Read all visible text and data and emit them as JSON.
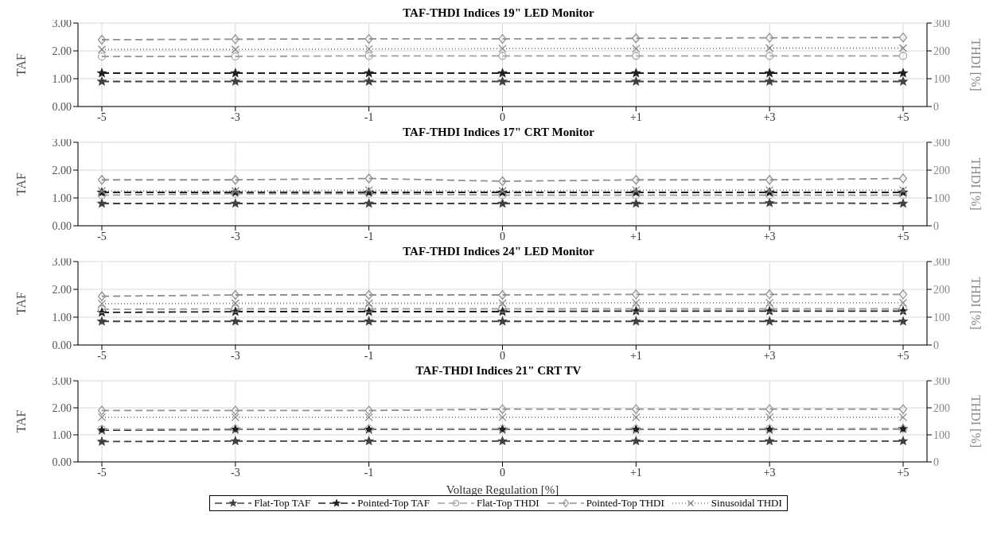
{
  "chart_data": [
    {
      "type": "line",
      "title": "TAF-THDI Indices 19\" LED Monitor",
      "ylabel": "TAF",
      "y2label": "THDI [%]",
      "categories": [
        "-5",
        "-3",
        "-1",
        "0",
        "+1",
        "+3",
        "+5"
      ],
      "ylim": [
        0,
        3
      ],
      "yticks": [
        {
          "value": 0,
          "label": "0.00"
        },
        {
          "value": 1,
          "label": "1.00"
        },
        {
          "value": 2,
          "label": "2.00"
        },
        {
          "value": 3,
          "label": "3.00"
        }
      ],
      "y2lim": [
        0,
        300
      ],
      "y2ticks": [
        0,
        100,
        200,
        300
      ],
      "grid": true,
      "legend": false,
      "series": [
        {
          "color": "#404040",
          "marker": "star",
          "line_style": "dashed",
          "values": [
            0.9,
            0.9,
            0.9,
            0.9,
            0.9,
            0.9,
            0.9
          ]
        },
        {
          "color": "#202020",
          "marker": "star",
          "line_style": "dashed",
          "values": [
            1.2,
            1.2,
            1.2,
            1.2,
            1.2,
            1.2,
            1.2
          ]
        },
        {
          "color": "#a0a0a0",
          "marker": "circle",
          "line_style": "dashed",
          "axis": "y2",
          "values": [
            180,
            180,
            182,
            182,
            182,
            182,
            182
          ]
        },
        {
          "color": "#909090",
          "marker": "diamond",
          "line_style": "dashed",
          "axis": "y2",
          "values": [
            240,
            242,
            243,
            243,
            245,
            247,
            248
          ]
        },
        {
          "color": "#808080",
          "marker": "cross",
          "line_style": "dotted",
          "axis": "y2",
          "values": [
            205,
            205,
            207,
            208,
            208,
            210,
            210
          ]
        }
      ]
    },
    {
      "type": "line",
      "title": "TAF-THDI Indices 17\" CRT Monitor",
      "ylabel": "TAF",
      "y2label": "THDI [%]",
      "categories": [
        "-5",
        "-3",
        "-1",
        "0",
        "+1",
        "+3",
        "+5"
      ],
      "ylim": [
        0,
        3
      ],
      "yticks": [
        {
          "value": 0,
          "label": "0.00"
        },
        {
          "value": 1,
          "label": "1.00"
        },
        {
          "value": 2,
          "label": "2.00"
        },
        {
          "value": 3,
          "label": "3.00"
        }
      ],
      "y2lim": [
        0,
        300
      ],
      "y2ticks": [
        0,
        100,
        200,
        300
      ],
      "grid": true,
      "legend": false,
      "series": [
        {
          "color": "#404040",
          "marker": "star",
          "line_style": "dashed",
          "values": [
            0.8,
            0.8,
            0.8,
            0.8,
            0.8,
            0.82,
            0.8
          ]
        },
        {
          "color": "#202020",
          "marker": "star",
          "line_style": "dashed",
          "values": [
            1.2,
            1.2,
            1.2,
            1.2,
            1.2,
            1.2,
            1.2
          ]
        },
        {
          "color": "#a0a0a0",
          "marker": "circle",
          "line_style": "dashed",
          "axis": "y2",
          "values": [
            110,
            115,
            115,
            110,
            110,
            110,
            110
          ]
        },
        {
          "color": "#909090",
          "marker": "diamond",
          "line_style": "dashed",
          "axis": "y2",
          "values": [
            165,
            165,
            170,
            160,
            165,
            165,
            170
          ]
        },
        {
          "color": "#808080",
          "marker": "cross",
          "line_style": "dotted",
          "axis": "y2",
          "values": [
            125,
            125,
            128,
            125,
            128,
            128,
            128
          ]
        }
      ]
    },
    {
      "type": "line",
      "title": "TAF-THDI Indices 24\" LED Monitor",
      "ylabel": "TAF",
      "y2label": "THDI [%]",
      "categories": [
        "-5",
        "-3",
        "-1",
        "0",
        "+1",
        "+3",
        "+5"
      ],
      "ylim": [
        0,
        3
      ],
      "yticks": [
        {
          "value": 0,
          "label": "0.00"
        },
        {
          "value": 1,
          "label": "1.00"
        },
        {
          "value": 2,
          "label": "2.00"
        },
        {
          "value": 3,
          "label": "3.00"
        }
      ],
      "y2lim": [
        0,
        300
      ],
      "y2ticks": [
        0,
        100,
        200,
        300
      ],
      "grid": true,
      "legend": false,
      "series": [
        {
          "color": "#404040",
          "marker": "star",
          "line_style": "dashed",
          "values": [
            0.85,
            0.85,
            0.85,
            0.85,
            0.85,
            0.85,
            0.85
          ]
        },
        {
          "color": "#202020",
          "marker": "star",
          "line_style": "dashed",
          "values": [
            1.17,
            1.2,
            1.2,
            1.2,
            1.22,
            1.22,
            1.22
          ]
        },
        {
          "color": "#a0a0a0",
          "marker": "circle",
          "line_style": "dashed",
          "axis": "y2",
          "values": [
            128,
            130,
            130,
            130,
            130,
            130,
            130
          ]
        },
        {
          "color": "#909090",
          "marker": "diamond",
          "line_style": "dashed",
          "axis": "y2",
          "values": [
            175,
            180,
            180,
            180,
            182,
            182,
            182
          ]
        },
        {
          "color": "#808080",
          "marker": "cross",
          "line_style": "dotted",
          "axis": "y2",
          "values": [
            148,
            150,
            150,
            150,
            152,
            152,
            152
          ]
        }
      ]
    },
    {
      "type": "line",
      "title": "TAF-THDI Indices 21\" CRT TV",
      "xlabel": "Voltage Regulation [%]",
      "ylabel": "TAF",
      "y2label": "THDI [%]",
      "categories": [
        "-5",
        "-3",
        "-1",
        "0",
        "+1",
        "+3",
        "+5"
      ],
      "ylim": [
        0,
        3
      ],
      "yticks": [
        {
          "value": 0,
          "label": "0.00"
        },
        {
          "value": 1,
          "label": "1.00"
        },
        {
          "value": 2,
          "label": "2.00"
        },
        {
          "value": 3,
          "label": "3.00"
        }
      ],
      "y2lim": [
        0,
        300
      ],
      "y2ticks": [
        0,
        100,
        200,
        300
      ],
      "grid": true,
      "legend": "bottom",
      "series": [
        {
          "name": "Flat-Top TAF",
          "color": "#404040",
          "marker": "star",
          "line_style": "dashed",
          "values": [
            0.75,
            0.77,
            0.77,
            0.77,
            0.77,
            0.77,
            0.77
          ]
        },
        {
          "name": "Pointed-Top TAF",
          "color": "#202020",
          "marker": "star",
          "line_style": "dashed",
          "values": [
            1.17,
            1.2,
            1.2,
            1.2,
            1.2,
            1.2,
            1.22
          ]
        },
        {
          "name": "Flat-Top THDI",
          "color": "#a0a0a0",
          "marker": "circle",
          "line_style": "dashed",
          "axis": "y2",
          "values": [
            120,
            122,
            122,
            122,
            122,
            122,
            122
          ]
        },
        {
          "name": "Pointed-Top THDI",
          "color": "#909090",
          "marker": "diamond",
          "line_style": "dashed",
          "axis": "y2",
          "values": [
            190,
            190,
            190,
            195,
            195,
            195,
            195
          ]
        },
        {
          "name": "Sinusoidal THDI",
          "color": "#808080",
          "marker": "cross",
          "line_style": "dotted",
          "axis": "y2",
          "values": [
            165,
            165,
            165,
            165,
            165,
            165,
            165
          ]
        }
      ]
    }
  ]
}
